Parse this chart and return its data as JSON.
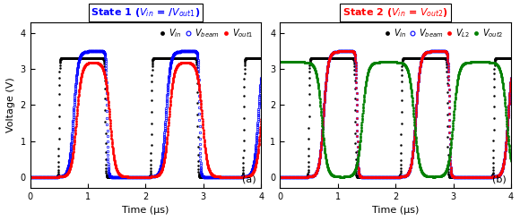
{
  "title1_color": "blue",
  "title2_color": "red",
  "xlabel": "Time (μs)",
  "ylabel": "Voltage (V)",
  "xlim": [
    0,
    4
  ],
  "ylim": [
    -0.3,
    4.3
  ],
  "yticks": [
    0,
    1,
    2,
    3,
    4
  ],
  "xticks": [
    0,
    1,
    2,
    3,
    4
  ],
  "n_points": 2000,
  "colors": {
    "vin": "black",
    "vbeam": "blue",
    "vout1": "red",
    "vl2": "red",
    "vout2": "green"
  },
  "markersize": 1.8,
  "legend_fontsize": 7,
  "label_fontsize": 8,
  "tick_fontsize": 7,
  "title_fontsize": 8
}
